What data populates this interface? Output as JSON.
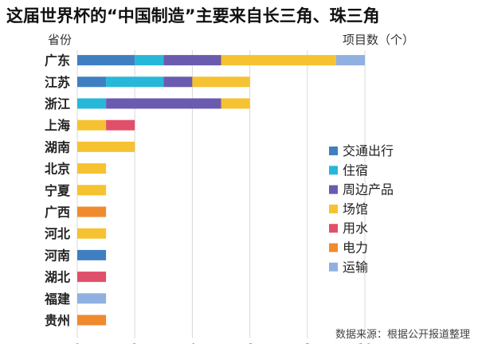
{
  "chart_data": {
    "type": "bar",
    "orientation": "horizontal",
    "stacked": true,
    "title": "这届世界杯的“中国制造”主要来自长三角、珠三角",
    "ylabel": "省份",
    "xlabel": "项目数（个）",
    "categories": [
      "广东",
      "江苏",
      "浙江",
      "上海",
      "湖南",
      "北京",
      "宁夏",
      "广西",
      "河北",
      "河南",
      "湖北",
      "福建",
      "贵州"
    ],
    "series": [
      {
        "name": "交通出行",
        "color": "#3f7fc1",
        "values": [
          2,
          1,
          0,
          0,
          0,
          0,
          0,
          0,
          0,
          1,
          0,
          0,
          0
        ]
      },
      {
        "name": "住宿",
        "color": "#27b7d8",
        "values": [
          1,
          2,
          1,
          0,
          0,
          0,
          0,
          0,
          0,
          0,
          0,
          0,
          0
        ]
      },
      {
        "name": "周边产品",
        "color": "#6a5bb0",
        "values": [
          2,
          1,
          4,
          0,
          0,
          0,
          0,
          0,
          0,
          0,
          0,
          0,
          0
        ]
      },
      {
        "name": "场馆",
        "color": "#f5c231",
        "values": [
          4,
          2,
          1,
          1,
          2,
          1,
          1,
          0,
          1,
          0,
          0,
          0,
          0
        ]
      },
      {
        "name": "用水",
        "color": "#e0506a",
        "values": [
          0,
          0,
          0,
          1,
          0,
          0,
          0,
          0,
          0,
          0,
          1,
          0,
          0
        ]
      },
      {
        "name": "电力",
        "color": "#f08a2e",
        "values": [
          0,
          0,
          0,
          0,
          0,
          0,
          0,
          1,
          0,
          0,
          0,
          0,
          1
        ]
      },
      {
        "name": "运输",
        "color": "#8fb0e0",
        "values": [
          1,
          0,
          0,
          0,
          0,
          0,
          0,
          0,
          0,
          0,
          0,
          1,
          0
        ]
      }
    ],
    "xlim": [
      0,
      10
    ],
    "xticks": [
      0,
      2,
      4,
      6,
      8,
      10
    ],
    "grid": true,
    "legend_position": "right",
    "source": "数据来源：根据公开报道整理"
  }
}
